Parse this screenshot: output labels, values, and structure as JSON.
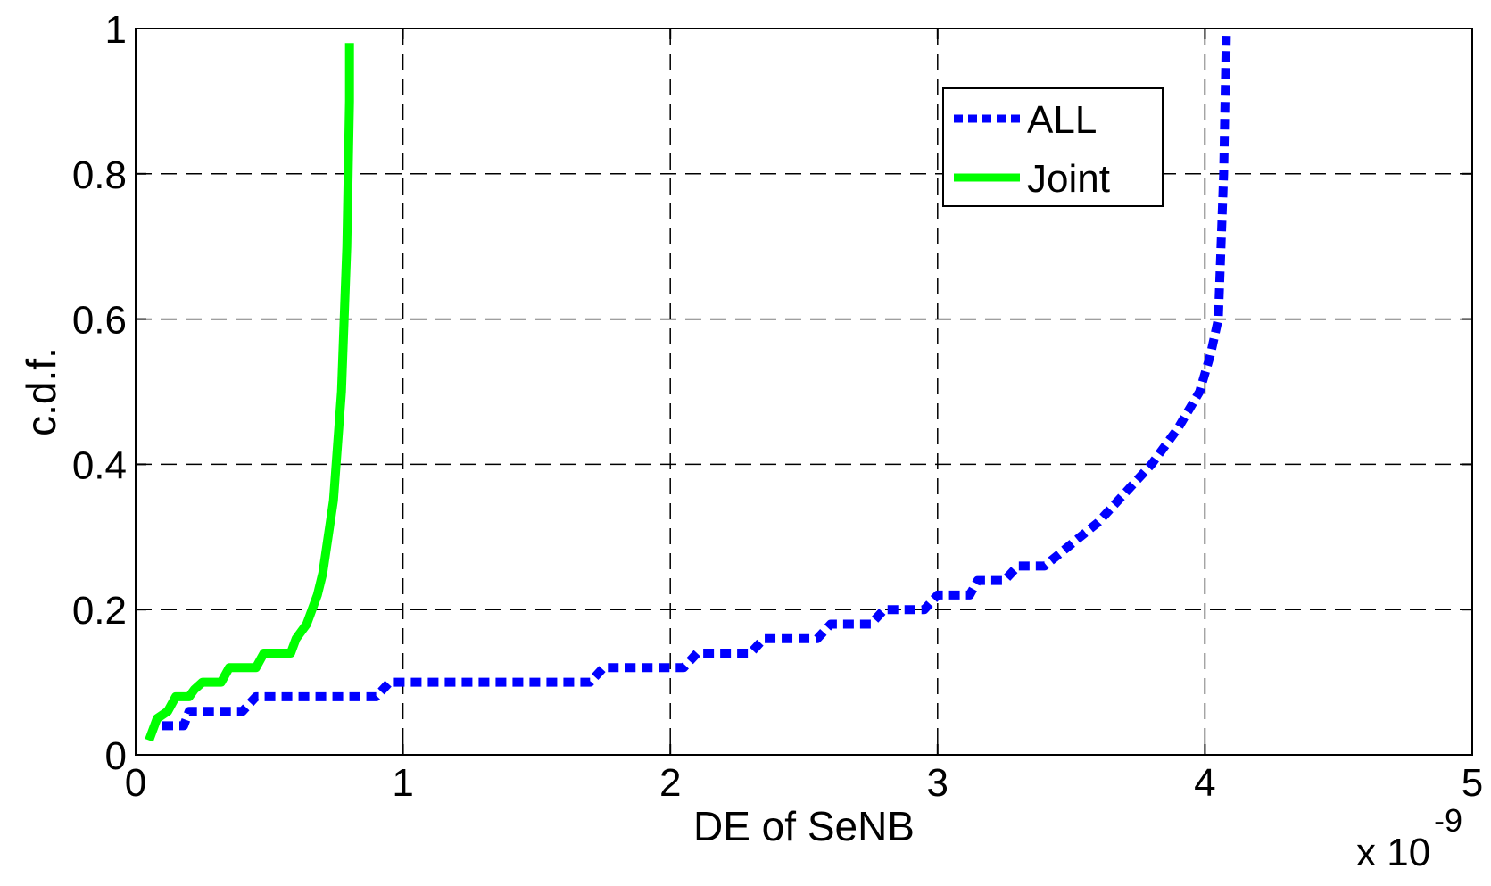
{
  "chart_data": {
    "type": "line",
    "title": "",
    "xlabel": "DE of SeNB",
    "ylabel": "c.d.f.",
    "x_multiplier_label": "x 10",
    "x_multiplier_exponent": "-9",
    "xlim": [
      0,
      5
    ],
    "ylim": [
      0,
      1
    ],
    "x_ticks": [
      0,
      1,
      2,
      3,
      4,
      5
    ],
    "x_tick_labels": [
      "0",
      "1",
      "2",
      "3",
      "4",
      "5"
    ],
    "y_ticks": [
      0,
      0.2,
      0.4,
      0.6,
      0.8,
      1
    ],
    "y_tick_labels": [
      "0",
      "0.2",
      "0.4",
      "0.6",
      "0.8",
      "1"
    ],
    "grid": true,
    "legend_position": "top-right",
    "series": [
      {
        "name": "ALL",
        "color": "#0000ff",
        "style": "dotted",
        "points": [
          [
            0.1,
            0.04
          ],
          [
            0.18,
            0.04
          ],
          [
            0.2,
            0.06
          ],
          [
            0.4,
            0.06
          ],
          [
            0.45,
            0.08
          ],
          [
            0.9,
            0.08
          ],
          [
            0.95,
            0.1
          ],
          [
            1.7,
            0.1
          ],
          [
            1.75,
            0.12
          ],
          [
            2.05,
            0.12
          ],
          [
            2.1,
            0.14
          ],
          [
            2.3,
            0.14
          ],
          [
            2.35,
            0.16
          ],
          [
            2.55,
            0.16
          ],
          [
            2.6,
            0.18
          ],
          [
            2.75,
            0.18
          ],
          [
            2.8,
            0.2
          ],
          [
            2.95,
            0.2
          ],
          [
            3.0,
            0.22
          ],
          [
            3.12,
            0.22
          ],
          [
            3.15,
            0.24
          ],
          [
            3.25,
            0.24
          ],
          [
            3.3,
            0.26
          ],
          [
            3.4,
            0.26
          ],
          [
            3.5,
            0.29
          ],
          [
            3.6,
            0.32
          ],
          [
            3.7,
            0.36
          ],
          [
            3.8,
            0.4
          ],
          [
            3.9,
            0.45
          ],
          [
            3.98,
            0.5
          ],
          [
            4.02,
            0.55
          ],
          [
            4.05,
            0.6
          ],
          [
            4.06,
            0.7
          ],
          [
            4.07,
            0.8
          ],
          [
            4.075,
            0.9
          ],
          [
            4.08,
            0.99
          ]
        ]
      },
      {
        "name": "Joint",
        "color": "#00ff00",
        "style": "solid",
        "points": [
          [
            0.05,
            0.02
          ],
          [
            0.08,
            0.05
          ],
          [
            0.12,
            0.06
          ],
          [
            0.15,
            0.08
          ],
          [
            0.2,
            0.08
          ],
          [
            0.22,
            0.09
          ],
          [
            0.25,
            0.1
          ],
          [
            0.32,
            0.1
          ],
          [
            0.35,
            0.12
          ],
          [
            0.45,
            0.12
          ],
          [
            0.48,
            0.14
          ],
          [
            0.58,
            0.14
          ],
          [
            0.6,
            0.16
          ],
          [
            0.64,
            0.18
          ],
          [
            0.68,
            0.22
          ],
          [
            0.7,
            0.25
          ],
          [
            0.72,
            0.3
          ],
          [
            0.74,
            0.35
          ],
          [
            0.75,
            0.4
          ],
          [
            0.77,
            0.5
          ],
          [
            0.78,
            0.6
          ],
          [
            0.79,
            0.7
          ],
          [
            0.795,
            0.8
          ],
          [
            0.8,
            0.9
          ],
          [
            0.8,
            0.98
          ]
        ]
      }
    ]
  }
}
